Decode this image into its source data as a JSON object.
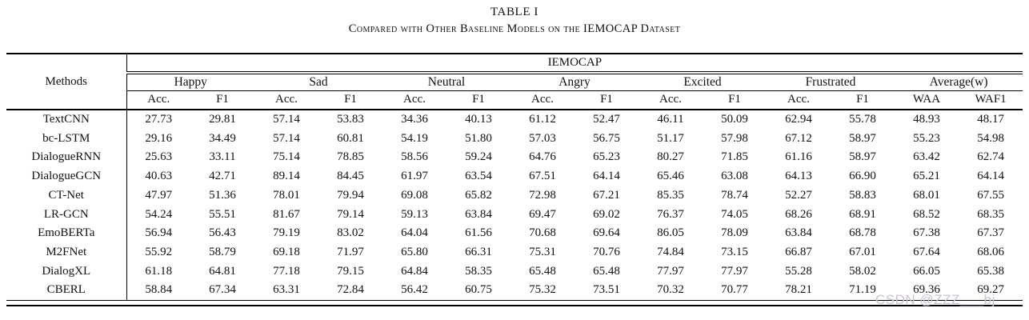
{
  "page": {
    "title": "TABLE I",
    "subtitle": "Compared with Other Baseline Models on the IEMOCAP Dataset"
  },
  "table": {
    "methods_header": "Methods",
    "dataset_header": "IEMOCAP",
    "emotion_groups": [
      "Happy",
      "Sad",
      "Neutral",
      "Angry",
      "Excited",
      "Frustrated",
      "Average(w)"
    ],
    "sub_headers": [
      "Acc.",
      "F1",
      "Acc.",
      "F1",
      "Acc.",
      "F1",
      "Acc.",
      "F1",
      "Acc.",
      "F1",
      "Acc.",
      "F1",
      "WAA",
      "WAF1"
    ],
    "rows": [
      {
        "method": "TextCNN",
        "values": [
          "27.73",
          "29.81",
          "57.14",
          "53.83",
          "34.36",
          "40.13",
          "61.12",
          "52.47",
          "46.11",
          "50.09",
          "62.94",
          "55.78",
          "48.93",
          "48.17"
        ],
        "bold": []
      },
      {
        "method": "bc-LSTM",
        "values": [
          "29.16",
          "34.49",
          "57.14",
          "60.81",
          "54.19",
          "51.80",
          "57.03",
          "56.75",
          "51.17",
          "57.98",
          "67.12",
          "58.97",
          "55.23",
          "54.98"
        ],
        "bold": []
      },
      {
        "method": "DialogueRNN",
        "values": [
          "25.63",
          "33.11",
          "75.14",
          "78.85",
          "58.56",
          "59.24",
          "64.76",
          "65.23",
          "80.27",
          "71.85",
          "61.16",
          "58.97",
          "63.42",
          "62.74"
        ],
        "bold": []
      },
      {
        "method": "DialogueGCN",
        "values": [
          "40.63",
          "42.71",
          "89.14",
          "84.45",
          "61.97",
          "63.54",
          "67.51",
          "64.14",
          "65.46",
          "63.08",
          "64.13",
          "66.90",
          "65.21",
          "64.14"
        ],
        "bold": [
          2,
          3
        ]
      },
      {
        "method": "CT-Net",
        "values": [
          "47.97",
          "51.36",
          "78.01",
          "79.94",
          "69.08",
          "65.82",
          "72.98",
          "67.21",
          "85.35",
          "78.74",
          "52.27",
          "58.83",
          "68.01",
          "67.55"
        ],
        "bold": [
          4,
          9
        ]
      },
      {
        "method": "LR-GCN",
        "values": [
          "54.24",
          "55.51",
          "81.67",
          "79.14",
          "59.13",
          "63.84",
          "69.47",
          "69.02",
          "76.37",
          "74.05",
          "68.26",
          "68.91",
          "68.52",
          "68.35"
        ],
        "bold": []
      },
      {
        "method": "EmoBERTa",
        "values": [
          "56.94",
          "56.43",
          "79.19",
          "83.02",
          "64.04",
          "61.56",
          "70.68",
          "69.64",
          "86.05",
          "78.09",
          "63.84",
          "68.78",
          "67.38",
          "67.37"
        ],
        "bold": [
          8
        ]
      },
      {
        "method": "M2FNet",
        "values": [
          "55.92",
          "58.79",
          "69.18",
          "71.97",
          "65.80",
          "66.31",
          "75.31",
          "70.76",
          "74.84",
          "73.15",
          "66.87",
          "67.01",
          "67.64",
          "68.06"
        ],
        "bold": [
          5
        ]
      },
      {
        "method": "DialogXL",
        "values": [
          "61.18",
          "64.81",
          "77.18",
          "79.15",
          "64.84",
          "58.35",
          "65.48",
          "65.48",
          "77.97",
          "77.97",
          "55.28",
          "58.02",
          "66.05",
          "65.38"
        ],
        "bold": [
          0
        ]
      },
      {
        "method": "CBERL",
        "values": [
          "58.84",
          "67.34",
          "63.31",
          "72.84",
          "56.42",
          "60.75",
          "75.32",
          "73.51",
          "70.32",
          "70.77",
          "78.21",
          "71.19",
          "69.36",
          "69.27"
        ],
        "bold": [
          1,
          6,
          7,
          10,
          11,
          12,
          13
        ]
      }
    ]
  },
  "watermark": "CSDN @ZZZ___bj",
  "colors": {
    "text": "#111111",
    "rule": "#000000",
    "background": "#ffffff",
    "watermark": "#ccc4d3"
  }
}
